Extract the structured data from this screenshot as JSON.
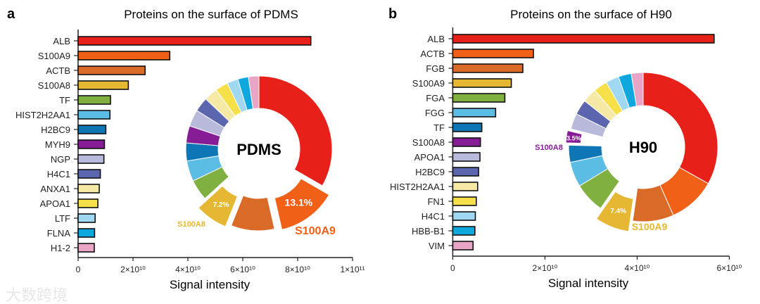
{
  "watermark": "大数跨境",
  "chart_data": [
    {
      "type": "bar",
      "panel": "a",
      "title": "Proteins on the surface of PDMS",
      "xlabel": "Signal intensity",
      "ylabel": "",
      "orientation": "horizontal",
      "xlim": [
        0,
        100000000000.0
      ],
      "xticks": [
        0,
        20000000000.0,
        40000000000.0,
        60000000000.0,
        80000000000.0,
        100000000000.0
      ],
      "xtick_labels": [
        "0",
        "2×10¹⁰",
        "4×10¹⁰",
        "6×10¹⁰",
        "8×10¹⁰",
        "1×10¹¹"
      ],
      "categories": [
        "ALB",
        "S100A9",
        "ACTB",
        "S100A8",
        "TF",
        "HIST2H2AA1",
        "H2BC9",
        "MYH9",
        "NGP",
        "H4C1",
        "ANXA1",
        "APOA1",
        "LTF",
        "FLNA",
        "H1-2"
      ],
      "values": [
        84800000000.0,
        33400000000.0,
        24400000000.0,
        18300000000.0,
        11800000000.0,
        11600000000.0,
        10100000000.0,
        9600000000.0,
        9400000000.0,
        8100000000.0,
        7700000000.0,
        7200000000.0,
        6200000000.0,
        6000000000.0,
        5900000000.0
      ],
      "colors": [
        "#e8201a",
        "#f06017",
        "#d96a28",
        "#e6b732",
        "#7fb040",
        "#5bbde4",
        "#0f76b5",
        "#861c96",
        "#b9b9dc",
        "#5b66ae",
        "#f5e9a5",
        "#f6e04a",
        "#9fd8f0",
        "#0ea8df",
        "#e9a5c5"
      ],
      "donut": {
        "type": "pie",
        "center_label": "PDMS",
        "highlights": [
          {
            "category": "S100A9",
            "percent_label": "13.1%",
            "name_label": "S100A9",
            "color": "#f06017"
          },
          {
            "category": "S100A8",
            "percent_label": "7.2%",
            "name_label": "S100A8",
            "color": "#e6b732"
          }
        ],
        "exploded": [
          "S100A9",
          "ACTB",
          "S100A8"
        ]
      }
    },
    {
      "type": "bar",
      "panel": "b",
      "title": "Proteins on the surface of H90",
      "xlabel": "Signal intensity",
      "ylabel": "",
      "orientation": "horizontal",
      "xlim": [
        0,
        60000000000.0
      ],
      "xticks": [
        0,
        20000000000.0,
        40000000000.0,
        60000000000.0
      ],
      "xtick_labels": [
        "0",
        "2×10¹⁰",
        "4×10¹⁰",
        "6×10¹⁰"
      ],
      "categories": [
        "ALB",
        "ACTB",
        "FGB",
        "S100A9",
        "FGA",
        "FGG",
        "TF",
        "S100A8",
        "APOA1",
        "H2BC9",
        "HIST2H2AA1",
        "FN1",
        "H4C1",
        "HBB-B1",
        "VIM"
      ],
      "values": [
        56700000000.0,
        17500000000.0,
        15200000000.0,
        12700000000.0,
        11300000000.0,
        9300000000.0,
        6300000000.0,
        6000000000.0,
        5900000000.0,
        5600000000.0,
        5400000000.0,
        5100000000.0,
        4900000000.0,
        4800000000.0,
        4400000000.0
      ],
      "colors": [
        "#e8201a",
        "#f06017",
        "#d96a28",
        "#e6b732",
        "#7fb040",
        "#5bbde4",
        "#0f76b5",
        "#861c96",
        "#b9b9dc",
        "#5b66ae",
        "#f5e9a5",
        "#f6e04a",
        "#9fd8f0",
        "#0ea8df",
        "#e9a5c5"
      ],
      "donut": {
        "type": "pie",
        "center_label": "H90",
        "highlights": [
          {
            "category": "S100A9",
            "percent_label": "7.4%",
            "name_label": "S100A9",
            "color": "#e6b732"
          },
          {
            "category": "S100A8",
            "percent_label": "3.5%",
            "name_label": "S100A8",
            "color": "#861c96"
          }
        ],
        "exploded": [
          "S100A9",
          "S100A8"
        ]
      }
    }
  ]
}
